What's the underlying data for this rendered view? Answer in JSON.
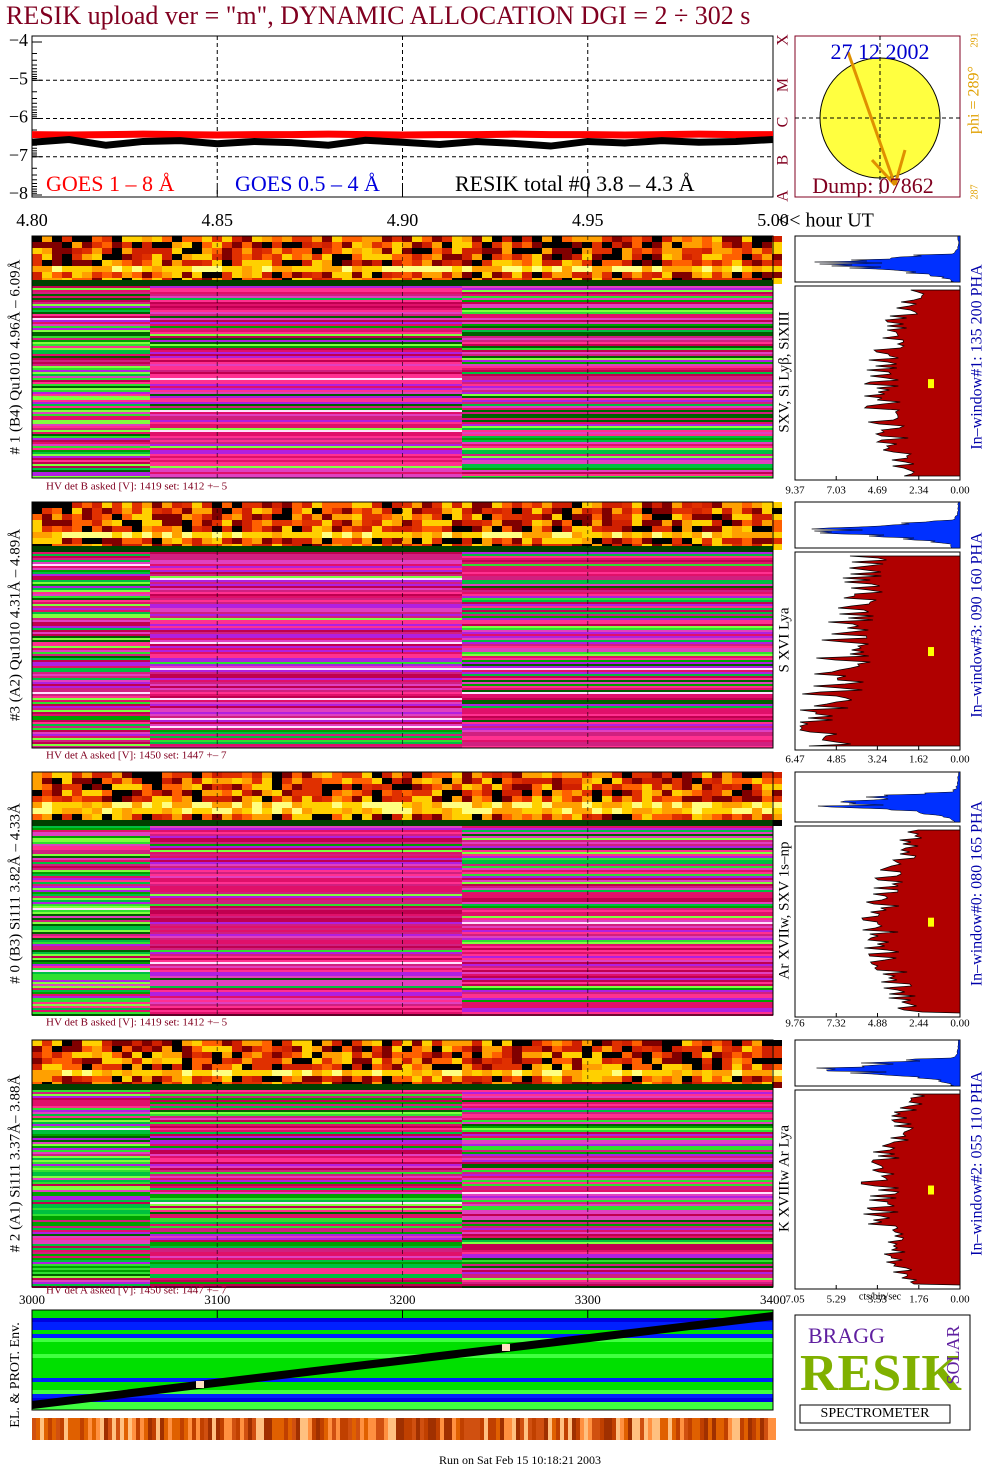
{
  "chart_data": {
    "type": "line",
    "title": "RESIK upload ver = \"m\", DYNAMIC ALLOCATION  DGI =   2 ÷ 302 s",
    "x": [
      4.8,
      4.81,
      4.82,
      4.83,
      4.84,
      4.85,
      4.86,
      4.87,
      4.88,
      4.89,
      4.9,
      4.91,
      4.92,
      4.93,
      4.94,
      4.95,
      4.96,
      4.97,
      4.98,
      4.99,
      5.0
    ],
    "series": [
      {
        "name": "GOES 1 – 8 Å",
        "color": "#ff0000",
        "values": [
          -6.42,
          -6.43,
          -6.42,
          -6.41,
          -6.42,
          -6.43,
          -6.42,
          -6.42,
          -6.41,
          -6.42,
          -6.43,
          -6.42,
          -6.42,
          -6.41,
          -6.42,
          -6.42,
          -6.43,
          -6.42,
          -6.41,
          -6.42,
          -6.42
        ]
      },
      {
        "name": "GOES 0.5 – 4 Å",
        "color": "#0000dd",
        "values": [
          null,
          null,
          null,
          null,
          null,
          null,
          null,
          null,
          null,
          null,
          null,
          null,
          null,
          null,
          null,
          null,
          null,
          null,
          null,
          null,
          null
        ]
      },
      {
        "name": "RESIK total #0  3.8 – 4.3 Å",
        "color": "#000000",
        "values": [
          -6.62,
          -6.55,
          -6.7,
          -6.6,
          -6.58,
          -6.66,
          -6.6,
          -6.63,
          -6.7,
          -6.57,
          -6.62,
          -6.68,
          -6.6,
          -6.65,
          -6.72,
          -6.6,
          -6.64,
          -6.58,
          -6.62,
          -6.6,
          -6.55
        ]
      }
    ],
    "xlim": [
      4.8,
      5.0
    ],
    "xticks": [
      {
        "value": 4.8,
        "label": "4.80"
      },
      {
        "value": 4.85,
        "label": "4.85"
      },
      {
        "value": 4.9,
        "label": "4.90"
      },
      {
        "value": 4.95,
        "label": "4.95"
      },
      {
        "value": 5.0,
        "label": "5.00"
      }
    ],
    "xlabel": "<< hour UT",
    "ylim": [
      -3.85,
      -8.05
    ],
    "yticks": [
      {
        "value": -4,
        "label": "−4"
      },
      {
        "value": -5,
        "label": "−5"
      },
      {
        "value": -6,
        "label": "−6"
      },
      {
        "value": -7,
        "label": "−7"
      },
      {
        "value": -8,
        "label": "−8"
      }
    ],
    "classes": [
      "X",
      "M",
      "C",
      "B",
      "A"
    ],
    "grid": true
  },
  "sun": {
    "date": "27 12 2002",
    "dump": "Dump: 07862",
    "phi": "phi = 289°",
    "phi_top": "291",
    "phi_bottom": "287"
  },
  "panels": [
    {
      "label": "# 1 (B4) Qu1010 4.96Å – 6.09Å",
      "hv": "HV det B asked [V]:  1419 set:  1412 +–    5",
      "line": "SXV, Si Lyβ, SiXIII",
      "window": "In–window#1:  135 200 PHA",
      "ticks": [
        {
          "value": 9.37,
          "label": "9.37"
        },
        {
          "value": 7.03,
          "label": "7.03"
        },
        {
          "value": 4.69,
          "label": "4.69"
        },
        {
          "value": 2.34,
          "label": "2.34"
        },
        {
          "value": 0,
          "label": "0.00"
        }
      ]
    },
    {
      "label": "#3 (A2) Qu1010  4.31Å – 4.89Å",
      "hv": "HV det A asked [V]:  1450 set:  1447 +–    7",
      "line": "S XVI Lya",
      "window": "In–window#3:  090 160 PHA",
      "ticks": [
        {
          "value": 6.47,
          "label": "6.47"
        },
        {
          "value": 4.85,
          "label": "4.85"
        },
        {
          "value": 3.24,
          "label": "3.24"
        },
        {
          "value": 1.62,
          "label": "1.62"
        },
        {
          "value": 0,
          "label": "0.00"
        }
      ]
    },
    {
      "label": "# 0 (B3) Si111  3.82Å – 4.33Å",
      "hv": "HV det B asked [V]:  1419 set:  1412 +–    5",
      "line": "Ar XVIIw, SXV 1s–np",
      "window": "In–window#0:  080 165 PHA",
      "ticks": [
        {
          "value": 9.76,
          "label": "9.76"
        },
        {
          "value": 7.32,
          "label": "7.32"
        },
        {
          "value": 4.88,
          "label": "4.88"
        },
        {
          "value": 2.44,
          "label": "2.44"
        },
        {
          "value": 0,
          "label": "0.00"
        }
      ]
    },
    {
      "label": "# 2 (A1) Si111  3.37Å– 3.88Å",
      "hv": "HV det A asked [V]:  1450 set:  1447 +–    7",
      "line": "K XVIIIw  Ar Lya",
      "window": "In–window#2:  055 110 PHA",
      "ticks": [
        {
          "value": 7.05,
          "label": "7.05"
        },
        {
          "value": 5.29,
          "label": "5.29"
        },
        {
          "value": 3.53,
          "label": "3.53"
        },
        {
          "value": 1.76,
          "label": "1.76"
        },
        {
          "value": 0,
          "label": "0.00"
        }
      ]
    }
  ],
  "pha_unit": "cts/bin/sec",
  "env": {
    "ylabel": "EL. & PROT. Env.",
    "xlim": [
      3000,
      3400
    ],
    "xticks": [
      3000,
      3100,
      3200,
      3300,
      3400
    ]
  },
  "logo": {
    "bragg": "BRAGG",
    "resik": "RESIK",
    "solar": "SOLAR",
    "spectrometer": "SPECTROMETER"
  },
  "footer": "Run on Sat Feb 15 10:18:21 2003"
}
